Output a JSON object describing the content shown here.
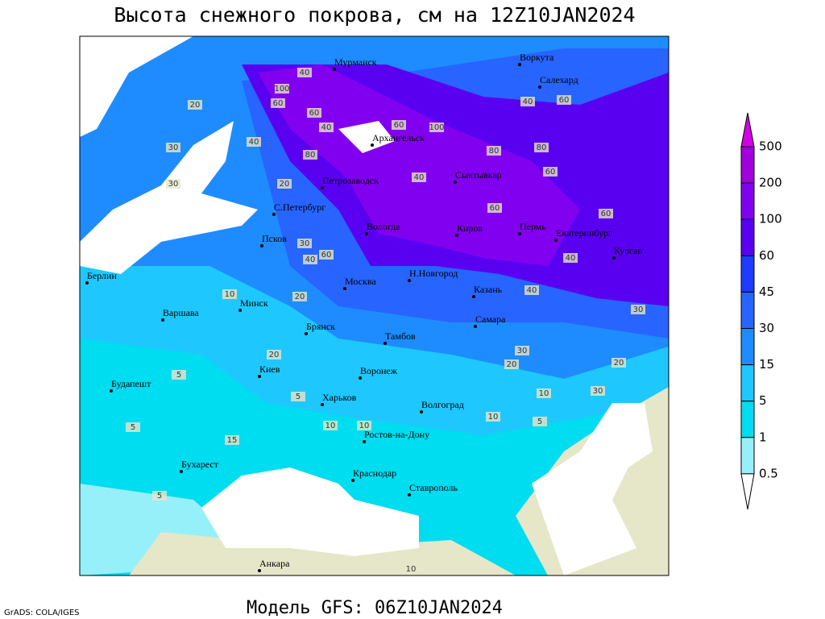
{
  "title": "Высота снежного покрова, см на 12Z10JAN2024",
  "subtitle": "Модель GFS: 06Z10JAN2024",
  "credit": "GrADS: COLA/IGES",
  "cities": [
    "Мурманск",
    "Воркута",
    "Салехард",
    "Архангельск",
    "Петрозаводск",
    "Сыктывкар",
    "С.Петербург",
    "Вологда",
    "Киров",
    "Пермь",
    "Екатеринбург",
    "Курган",
    "Псков",
    "Н.Новгород",
    "Москва",
    "Казань",
    "Берлин",
    "Минск",
    "Варшава",
    "Брянск",
    "Тамбов",
    "Самара",
    "Киев",
    "Воронеж",
    "Харьков",
    "Волгоград",
    "Будапешт",
    "Ростов-на-Дону",
    "Бухарест",
    "Краснодар",
    "Ставрополь",
    "Анкара"
  ],
  "contour_labels": [
    100,
    60,
    40,
    60,
    20,
    40,
    30,
    40,
    80,
    60,
    100,
    80,
    40,
    60,
    80,
    60,
    60,
    40,
    40,
    60,
    30,
    20,
    40,
    60,
    30,
    40,
    10,
    20,
    5,
    20,
    30,
    10,
    5,
    10,
    5,
    20,
    30,
    10,
    15,
    5,
    5,
    10,
    20,
    30,
    10
  ],
  "legend": {
    "levels": [
      500,
      200,
      100,
      60,
      45,
      30,
      15,
      5,
      1,
      0.5
    ],
    "colors": [
      "#d200e6",
      "#a000dc",
      "#8200f0",
      "#5a00f0",
      "#1e3cff",
      "#2864ff",
      "#1e8cff",
      "#1ec8ff",
      "#00dcf0",
      "#96f0fa",
      "#ffffff"
    ]
  }
}
